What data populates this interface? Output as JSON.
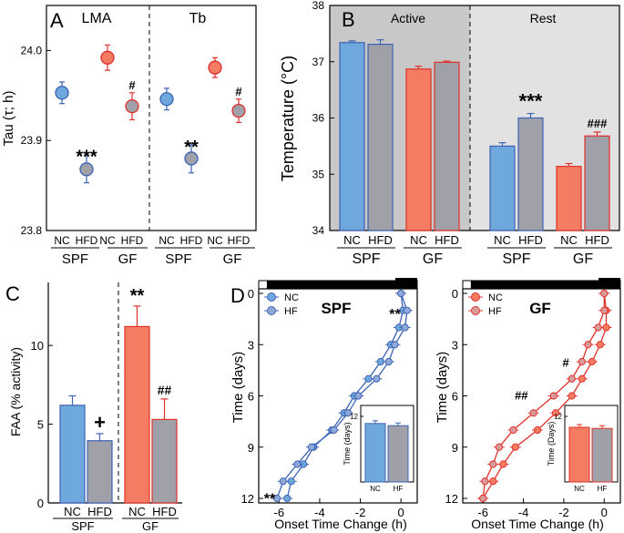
{
  "colors": {
    "nc_blue": "#6fa8dc",
    "nc_blue_edge": "#3c63b4",
    "gf_red": "#f47c62",
    "gf_red_edge": "#e0302a",
    "hf_gray": "#a0a0a8",
    "hf_gray_edge_spf": "#3c63b4",
    "hf_gray_edge_gf": "#e0302a",
    "shade_dark": "#c8c8c8",
    "shade_light": "#e2e2e2"
  },
  "chart_data": [
    {
      "panel": "A",
      "type": "scatter",
      "ylabel": "Tau (τ; h)",
      "ylim": [
        23.8,
        24.05
      ],
      "yticks": [
        "24.0",
        "23.9",
        "23.8"
      ],
      "subpanels": [
        {
          "title": "LMA",
          "points": [
            {
              "group": "SPF",
              "diet": "NC",
              "value": 23.953,
              "err": 0.012,
              "sig": ""
            },
            {
              "group": "SPF",
              "diet": "HFD",
              "value": 23.868,
              "err": 0.015,
              "sig": "***"
            },
            {
              "group": "GF",
              "diet": "NC",
              "value": 23.992,
              "err": 0.014,
              "sig": ""
            },
            {
              "group": "GF",
              "diet": "HFD",
              "value": 23.938,
              "err": 0.015,
              "sig": "#"
            }
          ]
        },
        {
          "title": "Tb",
          "points": [
            {
              "group": "SPF",
              "diet": "NC",
              "value": 23.946,
              "err": 0.012,
              "sig": ""
            },
            {
              "group": "SPF",
              "diet": "HFD",
              "value": 23.88,
              "err": 0.016,
              "sig": "**"
            },
            {
              "group": "GF",
              "diet": "NC",
              "value": 23.981,
              "err": 0.011,
              "sig": ""
            },
            {
              "group": "GF",
              "diet": "HFD",
              "value": 23.933,
              "err": 0.013,
              "sig": "#"
            }
          ]
        }
      ],
      "xlabels": {
        "diets": [
          "NC",
          "HFD",
          "NC",
          "HFD",
          "NC",
          "HFD",
          "NC",
          "HFD"
        ],
        "groups": [
          "SPF",
          "GF",
          "SPF",
          "GF"
        ]
      }
    },
    {
      "panel": "B",
      "type": "bar",
      "ylabel": "Temperature (°C)",
      "ylim": [
        34,
        38
      ],
      "yticks": [
        "38",
        "37",
        "36",
        "35",
        "34"
      ],
      "phases": [
        {
          "name": "Active",
          "bars": [
            {
              "group": "SPF",
              "diet": "NC",
              "value": 37.34,
              "err": 0.03,
              "sig": ""
            },
            {
              "group": "SPF",
              "diet": "HFD",
              "value": 37.31,
              "err": 0.08,
              "sig": ""
            },
            {
              "group": "GF",
              "diet": "NC",
              "value": 36.87,
              "err": 0.05,
              "sig": ""
            },
            {
              "group": "GF",
              "diet": "HFD",
              "value": 36.99,
              "err": 0.02,
              "sig": ""
            }
          ]
        },
        {
          "name": "Rest",
          "bars": [
            {
              "group": "SPF",
              "diet": "NC",
              "value": 35.5,
              "err": 0.06,
              "sig": ""
            },
            {
              "group": "SPF",
              "diet": "HFD",
              "value": 36.0,
              "err": 0.08,
              "sig": "***"
            },
            {
              "group": "GF",
              "diet": "NC",
              "value": 35.14,
              "err": 0.05,
              "sig": ""
            },
            {
              "group": "GF",
              "diet": "HFD",
              "value": 35.68,
              "err": 0.07,
              "sig": "###"
            }
          ]
        }
      ],
      "xlabels": {
        "diets": [
          "NC",
          "HFD",
          "NC",
          "HFD",
          "NC",
          "HFD",
          "NC",
          "HFD"
        ],
        "groups": [
          "SPF",
          "GF",
          "SPF",
          "GF"
        ]
      }
    },
    {
      "panel": "C",
      "type": "bar",
      "ylabel": "FAA (% activity)",
      "ylim": [
        0,
        14
      ],
      "yticks": [
        "10",
        "5",
        "0"
      ],
      "bars": [
        {
          "group": "SPF",
          "diet": "NC",
          "value": 6.2,
          "err": 0.6,
          "sig": ""
        },
        {
          "group": "SPF",
          "diet": "HFD",
          "value": 3.95,
          "err": 0.45,
          "sig": "+"
        },
        {
          "group": "GF",
          "diet": "NC",
          "value": 11.2,
          "err": 1.3,
          "sig": "**"
        },
        {
          "group": "GF",
          "diet": "HFD",
          "value": 5.3,
          "err": 1.3,
          "sig": "##"
        }
      ],
      "xlabels": {
        "diets": [
          "NC",
          "HFD",
          "NC",
          "HFD"
        ],
        "groups": [
          "SPF",
          "GF"
        ]
      }
    },
    {
      "panel": "D",
      "type": "line",
      "ylabel": "Time (days)",
      "xlabel": "Onset Time Change (h)",
      "xlim": [
        -7,
        0.8
      ],
      "ylim": [
        0,
        12
      ],
      "xticks": [
        "-6",
        "-4",
        "-2",
        "0"
      ],
      "yticks": [
        "0",
        "3",
        "6",
        "9",
        "12"
      ],
      "subpanels": [
        {
          "title": "SPF",
          "legend": [
            "NC",
            "HF"
          ],
          "sig_top": "**",
          "sig_bottom": "**",
          "series": [
            {
              "name": "NC",
              "x": [
                0,
                0.1,
                -0.1,
                -0.5,
                -1,
                -1.6,
                -2.3,
                -2.8,
                -3.4,
                -4.3,
                -4.8,
                -5.4,
                -5.6
              ],
              "y": [
                0,
                1,
                2,
                3,
                4,
                5,
                6,
                7,
                8,
                9,
                10,
                11,
                12
              ]
            },
            {
              "name": "HF",
              "x": [
                0,
                0.3,
                0.2,
                -0.3,
                -0.6,
                -1.2,
                -2.1,
                -2.6,
                -3.3,
                -4.4,
                -5.1,
                -5.8,
                -6.1
              ],
              "y": [
                0,
                1,
                2,
                3,
                4,
                5,
                6,
                7,
                8,
                9,
                10,
                11,
                12
              ]
            }
          ],
          "inset": {
            "ylabel": "Time (days)",
            "ytick": "12",
            "labels": [
              "NC",
              "HF"
            ],
            "values": [
              10.7,
              10.3
            ]
          }
        },
        {
          "title": "GF",
          "legend": [
            "NC",
            "HF"
          ],
          "sig_mid1": "#",
          "sig_mid2": "##",
          "series": [
            {
              "name": "NC",
              "x": [
                0,
                0.1,
                0.1,
                -0.2,
                -0.6,
                -1.1,
                -1.6,
                -2.4,
                -3.3,
                -4.4,
                -5.0,
                -5.5,
                -6.0
              ],
              "y": [
                0,
                1,
                2,
                3,
                4,
                5,
                6,
                7,
                8,
                9,
                10,
                11,
                12
              ]
            },
            {
              "name": "HF",
              "x": [
                0,
                0,
                -0.3,
                -0.8,
                -1.1,
                -1.6,
                -2.5,
                -3.5,
                -4.5,
                -5.2,
                -5.5,
                -5.9,
                -6.0
              ],
              "y": [
                0,
                1,
                2,
                3,
                4,
                5,
                6,
                7,
                8,
                9,
                10,
                11,
                12
              ]
            }
          ],
          "inset": {
            "ylabel": "Time (Days)",
            "ytick": "12",
            "labels": [
              "NC",
              "HF"
            ],
            "values": [
              10.0,
              9.8
            ]
          }
        }
      ]
    }
  ],
  "panel_letters": [
    "A",
    "B",
    "C",
    "D"
  ]
}
